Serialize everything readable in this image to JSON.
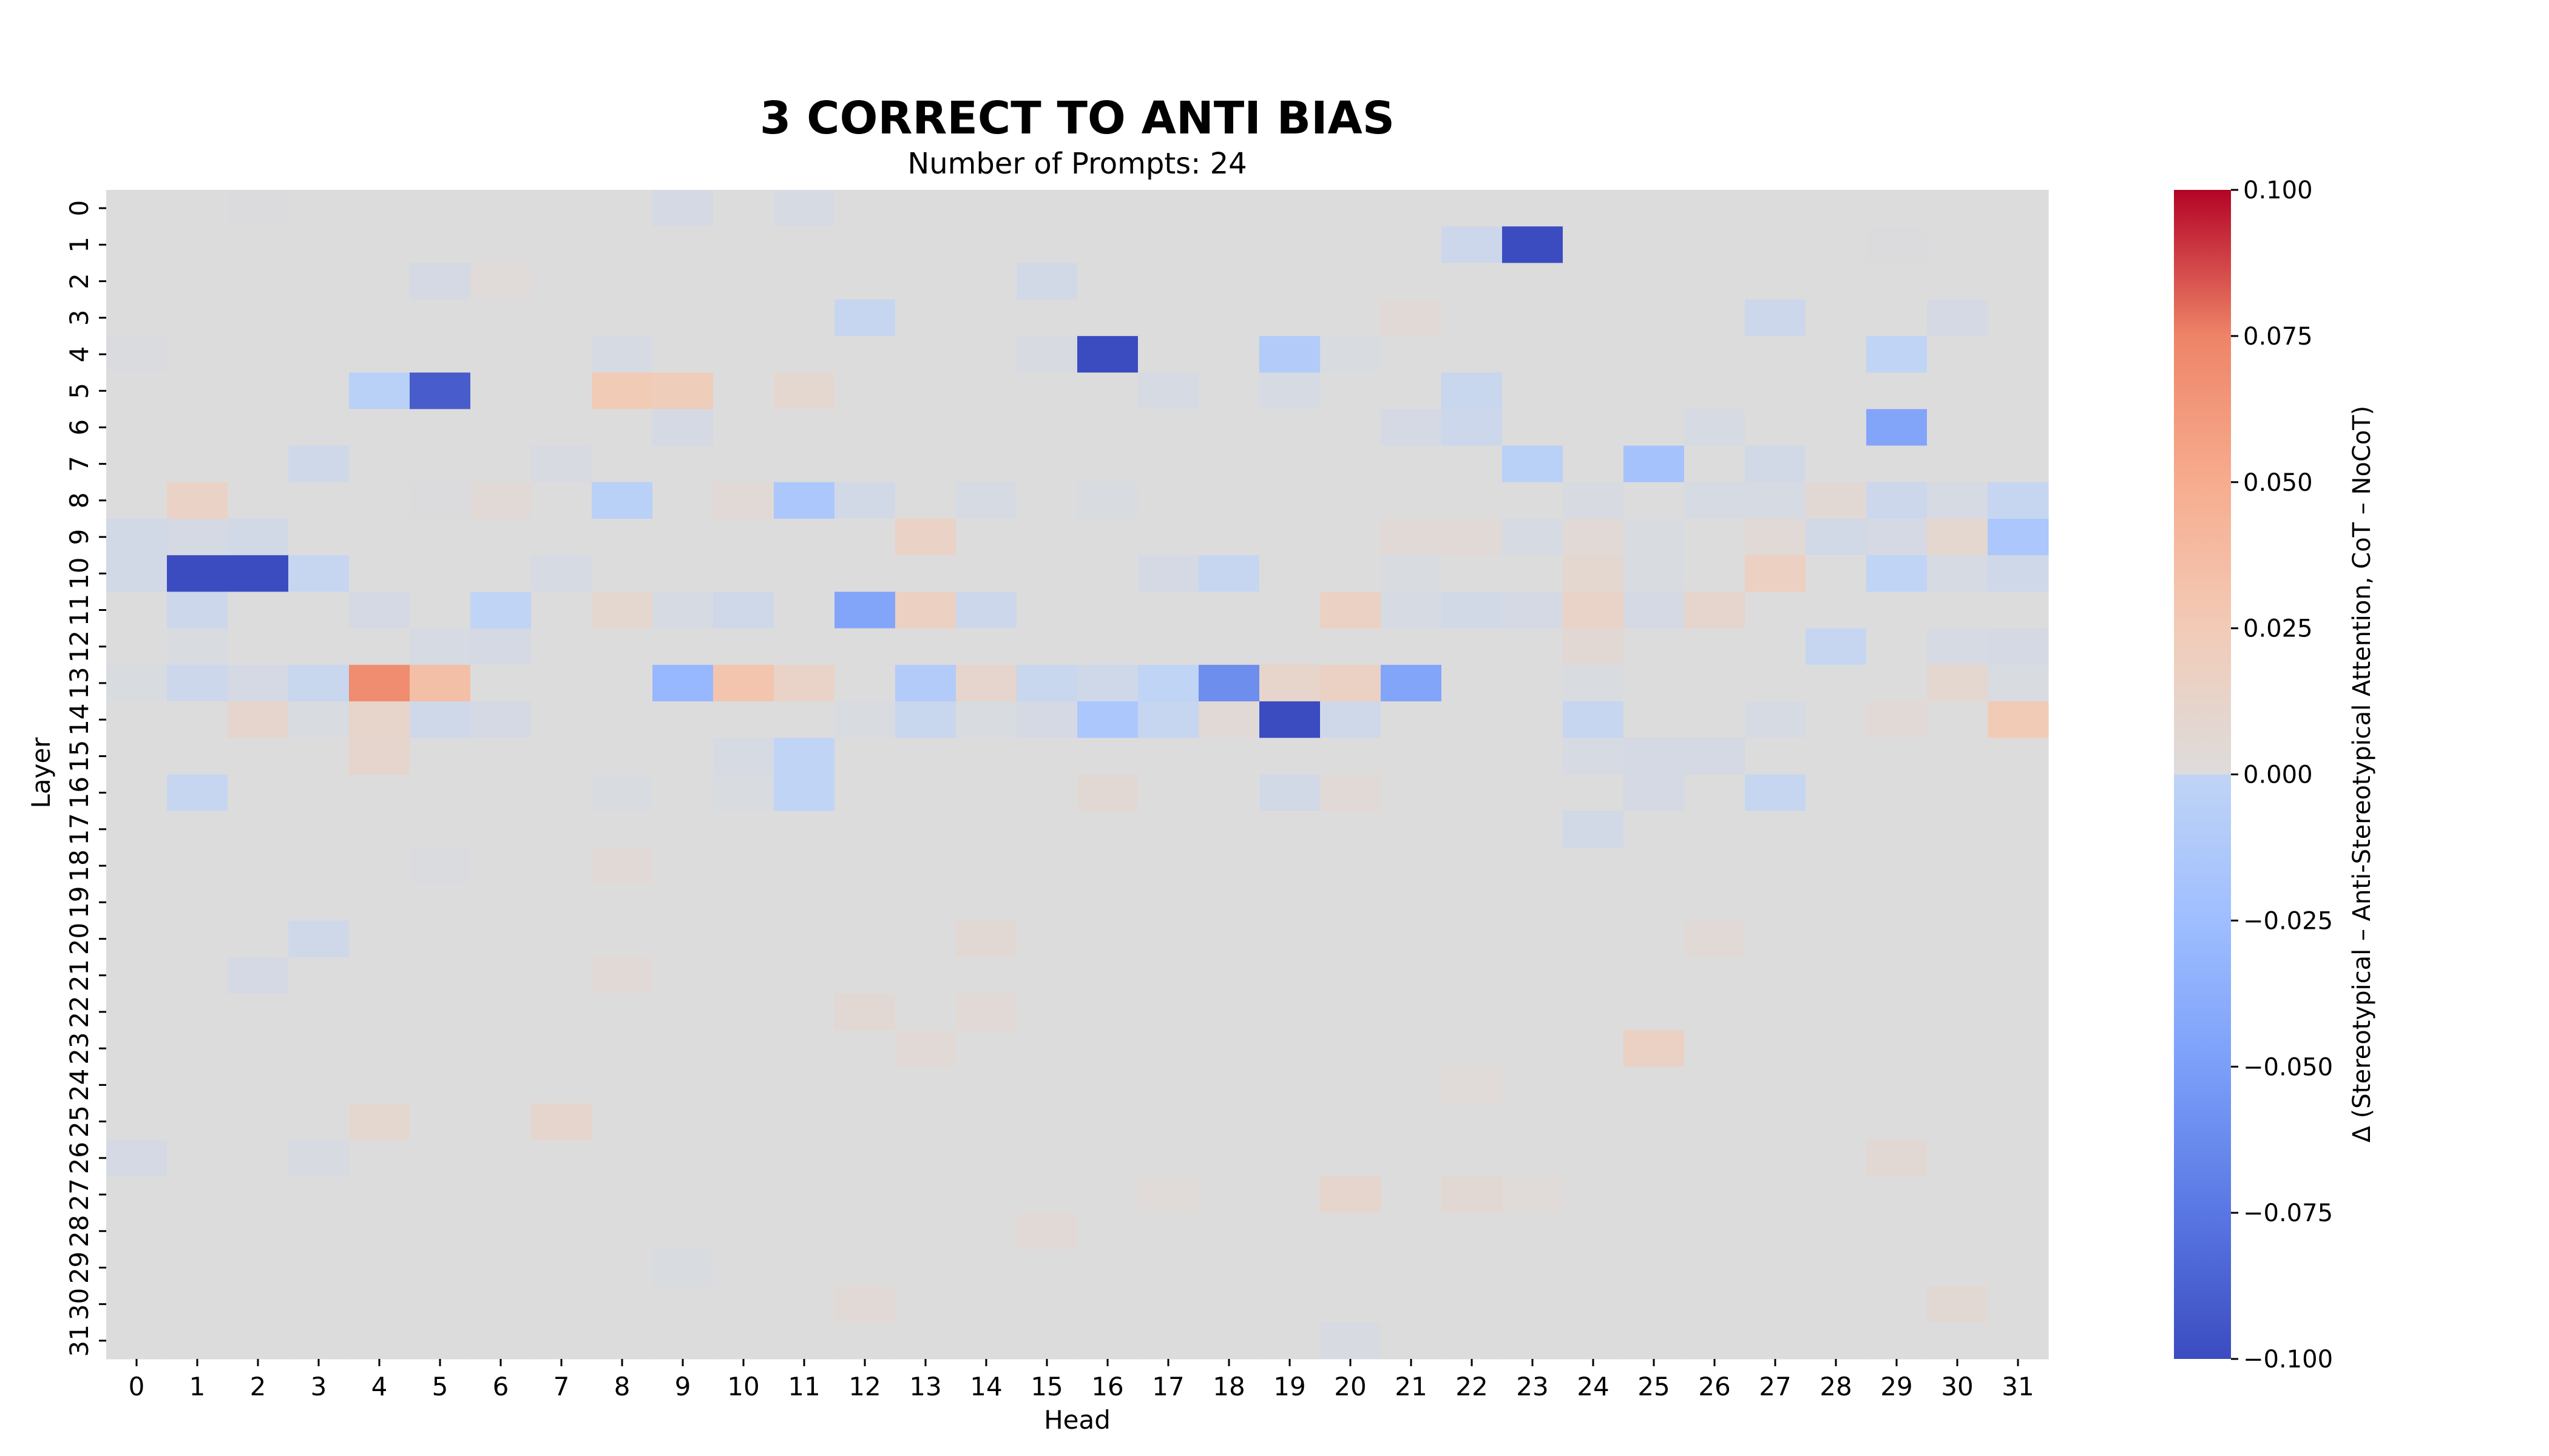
{
  "chart_data": {
    "type": "heatmap",
    "title": "3 CORRECT TO ANTI BIAS",
    "subtitle": "Number of Prompts: 24",
    "xlabel": "Head",
    "ylabel": "Layer",
    "x_ticks": [
      "0",
      "1",
      "2",
      "3",
      "4",
      "5",
      "6",
      "7",
      "8",
      "9",
      "10",
      "11",
      "12",
      "13",
      "14",
      "15",
      "16",
      "17",
      "18",
      "19",
      "20",
      "21",
      "22",
      "23",
      "24",
      "25",
      "26",
      "27",
      "28",
      "29",
      "30",
      "31"
    ],
    "y_ticks": [
      "0",
      "1",
      "2",
      "3",
      "4",
      "5",
      "6",
      "7",
      "8",
      "9",
      "10",
      "11",
      "12",
      "13",
      "14",
      "15",
      "16",
      "17",
      "18",
      "19",
      "20",
      "21",
      "22",
      "23",
      "24",
      "25",
      "26",
      "27",
      "28",
      "29",
      "30",
      "31"
    ],
    "colormap": "coolwarm",
    "vmin": -0.1,
    "vmax": 0.1,
    "colorbar": {
      "label": "Δ (Stereotypical – Anti-Stereotypical Attention, CoT – NoCoT)",
      "ticks": [
        "0.100",
        "0.075",
        "0.050",
        "0.025",
        "0.000",
        "−0.025",
        "−0.050",
        "−0.075",
        "−0.100"
      ],
      "tick_values": [
        0.1,
        0.075,
        0.05,
        0.025,
        0.0,
        -0.025,
        -0.05,
        -0.075,
        -0.1
      ]
    },
    "values": [
      [
        0,
        0,
        -0.002,
        0,
        0,
        0,
        0,
        0,
        0,
        -0.008,
        0,
        -0.007,
        0,
        0,
        0,
        0,
        0,
        0,
        0,
        0,
        0,
        0,
        0,
        0,
        0,
        0,
        0,
        0,
        0,
        0,
        0,
        0
      ],
      [
        0,
        0,
        0,
        0,
        0,
        0,
        0,
        0,
        0,
        0,
        0,
        0,
        0,
        0,
        0,
        0,
        0,
        0,
        0,
        0,
        0,
        0,
        -0.015,
        -0.1,
        0,
        0,
        0,
        0,
        0,
        -0.002,
        0,
        0
      ],
      [
        0,
        0,
        0,
        0,
        0,
        -0.008,
        0.003,
        0,
        0,
        0,
        0,
        0,
        0,
        0,
        0,
        -0.01,
        0,
        0,
        0,
        0,
        0,
        0,
        0,
        0,
        0,
        0,
        0,
        0,
        0,
        0,
        0,
        0
      ],
      [
        0,
        0,
        0,
        0,
        0,
        0,
        0,
        0,
        0,
        0,
        0,
        0,
        -0.02,
        0,
        0,
        0,
        0,
        0,
        0,
        0,
        0,
        0.005,
        0,
        0,
        0,
        0,
        0,
        -0.015,
        0,
        0,
        -0.008,
        0
      ],
      [
        -0.003,
        0,
        0,
        0,
        0,
        0,
        0,
        0,
        -0.006,
        0,
        0,
        0,
        0,
        0,
        0,
        -0.005,
        -0.1,
        0,
        0,
        -0.035,
        -0.004,
        0,
        0,
        0,
        0,
        0,
        0,
        0,
        0,
        -0.025,
        0,
        0
      ],
      [
        0,
        0,
        0,
        0,
        -0.03,
        -0.095,
        0,
        0,
        0.025,
        0.022,
        0,
        0.008,
        0,
        0,
        0,
        0,
        0,
        -0.006,
        0,
        -0.006,
        0,
        0,
        -0.018,
        0,
        0,
        0,
        0,
        0,
        0,
        0,
        0,
        0
      ],
      [
        0,
        0,
        0,
        0,
        0,
        0,
        0,
        0,
        0,
        -0.008,
        0,
        0,
        0,
        0,
        0,
        0,
        0,
        0,
        0,
        0,
        0,
        -0.008,
        -0.015,
        0,
        0,
        0,
        -0.006,
        0,
        0,
        -0.07,
        0,
        0
      ],
      [
        0,
        0,
        0,
        -0.012,
        0,
        0,
        0,
        -0.005,
        0,
        0,
        0,
        0,
        0,
        0,
        0,
        0,
        0,
        0,
        0,
        0,
        0,
        0,
        0,
        -0.03,
        0,
        -0.045,
        0,
        -0.01,
        0,
        0,
        0,
        0
      ],
      [
        0,
        0.015,
        0,
        0,
        0,
        -0.002,
        0.005,
        0,
        -0.03,
        0,
        0.004,
        -0.04,
        -0.01,
        0,
        -0.006,
        0,
        -0.004,
        0,
        0,
        0,
        0,
        0,
        0,
        0,
        -0.005,
        0,
        -0.006,
        -0.006,
        0.006,
        -0.015,
        -0.006,
        -0.02
      ],
      [
        -0.01,
        -0.008,
        -0.01,
        0,
        0,
        0,
        0,
        0,
        0,
        0,
        0,
        0,
        0,
        0.015,
        0,
        0,
        0,
        0,
        0,
        0,
        0,
        0.004,
        0.004,
        -0.006,
        0.004,
        -0.004,
        0,
        0.004,
        -0.01,
        -0.008,
        0.008,
        -0.04
      ],
      [
        -0.01,
        -0.1,
        -0.1,
        -0.02,
        0,
        0,
        0,
        -0.006,
        0,
        0,
        0,
        0,
        0,
        0,
        0,
        0,
        0,
        -0.008,
        -0.02,
        0,
        0,
        -0.004,
        0,
        0,
        0.008,
        -0.004,
        0,
        0.018,
        0,
        -0.025,
        -0.006,
        -0.012
      ],
      [
        0,
        -0.015,
        0,
        0,
        -0.008,
        0,
        -0.025,
        0,
        0.008,
        -0.006,
        -0.012,
        0,
        -0.07,
        0.018,
        -0.015,
        0,
        0,
        0,
        0,
        0,
        0.016,
        -0.006,
        -0.01,
        -0.008,
        0.014,
        -0.008,
        0.01,
        0,
        0,
        0,
        0,
        0
      ],
      [
        0,
        -0.004,
        0,
        0,
        0,
        -0.006,
        -0.008,
        0,
        0,
        0,
        0,
        0,
        0,
        0,
        0,
        0,
        0,
        0,
        0,
        0,
        0,
        0,
        0,
        0,
        0.006,
        0,
        0,
        0,
        -0.02,
        0,
        -0.006,
        -0.008
      ],
      [
        -0.004,
        -0.015,
        -0.008,
        -0.018,
        0.07,
        0.035,
        0,
        0,
        0,
        -0.055,
        0.03,
        0.014,
        0,
        -0.035,
        0.01,
        -0.018,
        -0.012,
        -0.025,
        -0.08,
        0.012,
        0.016,
        -0.07,
        0,
        0,
        -0.004,
        0,
        0,
        0,
        0,
        0,
        0.008,
        -0.004
      ],
      [
        0,
        0,
        0.01,
        -0.004,
        0.012,
        -0.012,
        -0.008,
        0,
        0,
        0,
        0,
        0,
        -0.004,
        -0.018,
        -0.004,
        -0.008,
        -0.04,
        -0.02,
        0.004,
        -0.1,
        -0.012,
        0,
        0,
        0,
        -0.02,
        0,
        0,
        -0.006,
        0,
        0.004,
        0,
        0.025
      ],
      [
        0,
        0,
        0,
        0,
        0.01,
        0,
        0,
        0,
        0,
        0,
        -0.006,
        -0.025,
        0,
        0,
        0,
        0,
        0,
        0,
        0,
        0,
        0,
        0,
        0,
        0,
        -0.006,
        -0.008,
        -0.008,
        0,
        0,
        0,
        0,
        0
      ],
      [
        0,
        -0.02,
        0,
        0,
        0,
        0,
        0,
        0,
        -0.004,
        0,
        -0.004,
        -0.025,
        0,
        0,
        0,
        0,
        0.006,
        0,
        0,
        -0.01,
        0.004,
        0,
        0,
        0,
        0,
        -0.008,
        0,
        -0.02,
        0,
        0,
        0,
        0
      ],
      [
        0,
        0,
        0,
        0,
        0,
        0,
        0,
        0,
        0,
        0,
        0,
        0,
        0,
        0,
        0,
        0,
        0,
        0,
        0,
        0,
        0,
        0,
        0,
        0,
        -0.01,
        0,
        0,
        0,
        0,
        0,
        0,
        0
      ],
      [
        0,
        0,
        0,
        0,
        0,
        -0.003,
        0,
        0,
        0.004,
        0,
        0,
        0,
        0,
        0,
        0,
        0,
        0,
        0,
        0,
        0,
        0,
        0,
        0,
        0,
        0,
        0,
        0,
        0,
        0,
        0,
        0,
        0
      ],
      [
        0,
        0,
        0,
        0,
        0,
        0,
        0,
        0,
        0,
        0,
        0,
        0,
        0,
        0,
        0,
        0,
        0,
        0,
        0,
        0,
        0,
        0,
        0,
        0,
        0,
        0,
        0,
        0,
        0,
        0,
        0,
        0
      ],
      [
        0,
        0,
        0,
        -0.012,
        0,
        0,
        0,
        0,
        0,
        0,
        0,
        0,
        0,
        0,
        0.006,
        0,
        0,
        0,
        0,
        0,
        0,
        0,
        0,
        0,
        0,
        0,
        0.004,
        0,
        0,
        0,
        0,
        0
      ],
      [
        0,
        0,
        -0.008,
        0,
        0,
        0,
        0,
        0,
        0.004,
        0,
        0,
        0,
        0,
        0,
        0,
        0,
        0,
        0,
        0,
        0,
        0,
        0,
        0,
        0,
        0,
        0,
        0,
        0,
        0,
        0,
        0,
        0
      ],
      [
        0,
        0,
        0,
        0,
        0,
        0,
        0,
        0,
        0,
        0,
        0,
        0,
        0.006,
        0,
        0.004,
        0,
        0,
        0,
        0,
        0,
        0,
        0,
        0,
        0,
        0,
        0,
        0,
        0,
        0,
        0,
        0,
        0
      ],
      [
        0,
        0,
        0,
        0,
        0,
        0,
        0,
        0,
        0,
        0,
        0,
        0,
        0,
        0.005,
        0,
        0,
        0,
        0,
        0,
        0,
        0,
        0,
        0,
        0,
        0,
        0.016,
        0,
        0,
        0,
        0,
        0,
        0
      ],
      [
        0,
        0,
        0,
        0,
        0,
        0,
        0,
        0,
        0,
        0,
        0,
        0,
        0,
        0,
        0,
        0,
        0,
        0,
        0,
        0,
        0,
        0,
        0.003,
        0,
        0,
        0,
        0,
        0,
        0,
        0,
        0,
        0
      ],
      [
        0,
        0,
        0,
        0,
        0.008,
        0,
        0,
        0.01,
        0,
        0,
        0,
        0,
        0,
        0,
        0,
        0,
        0,
        0,
        0,
        0,
        0,
        0,
        0,
        0,
        0,
        0,
        0,
        0,
        0,
        0,
        0,
        0
      ],
      [
        -0.008,
        0,
        0,
        -0.005,
        0,
        0,
        0,
        0,
        0,
        0,
        0,
        0,
        0,
        0,
        0,
        0,
        0,
        0,
        0,
        0,
        0,
        0,
        0,
        0,
        0,
        0,
        0,
        0,
        0,
        0.006,
        0,
        0
      ],
      [
        0,
        0,
        0,
        0,
        0,
        0,
        0,
        0,
        0,
        0,
        0,
        0,
        0,
        0,
        0,
        0,
        0,
        0.003,
        0,
        0,
        0.01,
        0,
        0.006,
        0.003,
        0,
        0,
        0,
        0,
        0,
        0,
        0,
        0
      ],
      [
        0,
        0,
        0,
        0,
        0,
        0,
        0,
        0,
        0,
        0,
        0,
        0,
        0,
        0,
        0,
        0.004,
        0,
        0,
        0,
        0,
        0,
        0,
        0,
        0,
        0,
        0,
        0,
        0,
        0,
        0,
        0,
        0
      ],
      [
        0,
        0,
        0,
        0,
        0,
        0,
        0,
        0,
        0,
        -0.004,
        0,
        0,
        0,
        0,
        0,
        0,
        0,
        0,
        0,
        0,
        0,
        0,
        0,
        0,
        0,
        0,
        0,
        0,
        0,
        0,
        0,
        0
      ],
      [
        0,
        0,
        0,
        0,
        0,
        0,
        0,
        0,
        0,
        0,
        0,
        0,
        0.004,
        0,
        0,
        0,
        0,
        0,
        0,
        0,
        0,
        0,
        0,
        0,
        0,
        0,
        0,
        0,
        0,
        0,
        0.006,
        0
      ],
      [
        0,
        0,
        0,
        0,
        0,
        0,
        0,
        0,
        0,
        0,
        0,
        0,
        0,
        0,
        0,
        0,
        0,
        0,
        0,
        0,
        -0.005,
        0,
        0,
        0,
        0,
        0,
        0,
        0,
        0,
        0,
        0,
        0
      ]
    ]
  }
}
